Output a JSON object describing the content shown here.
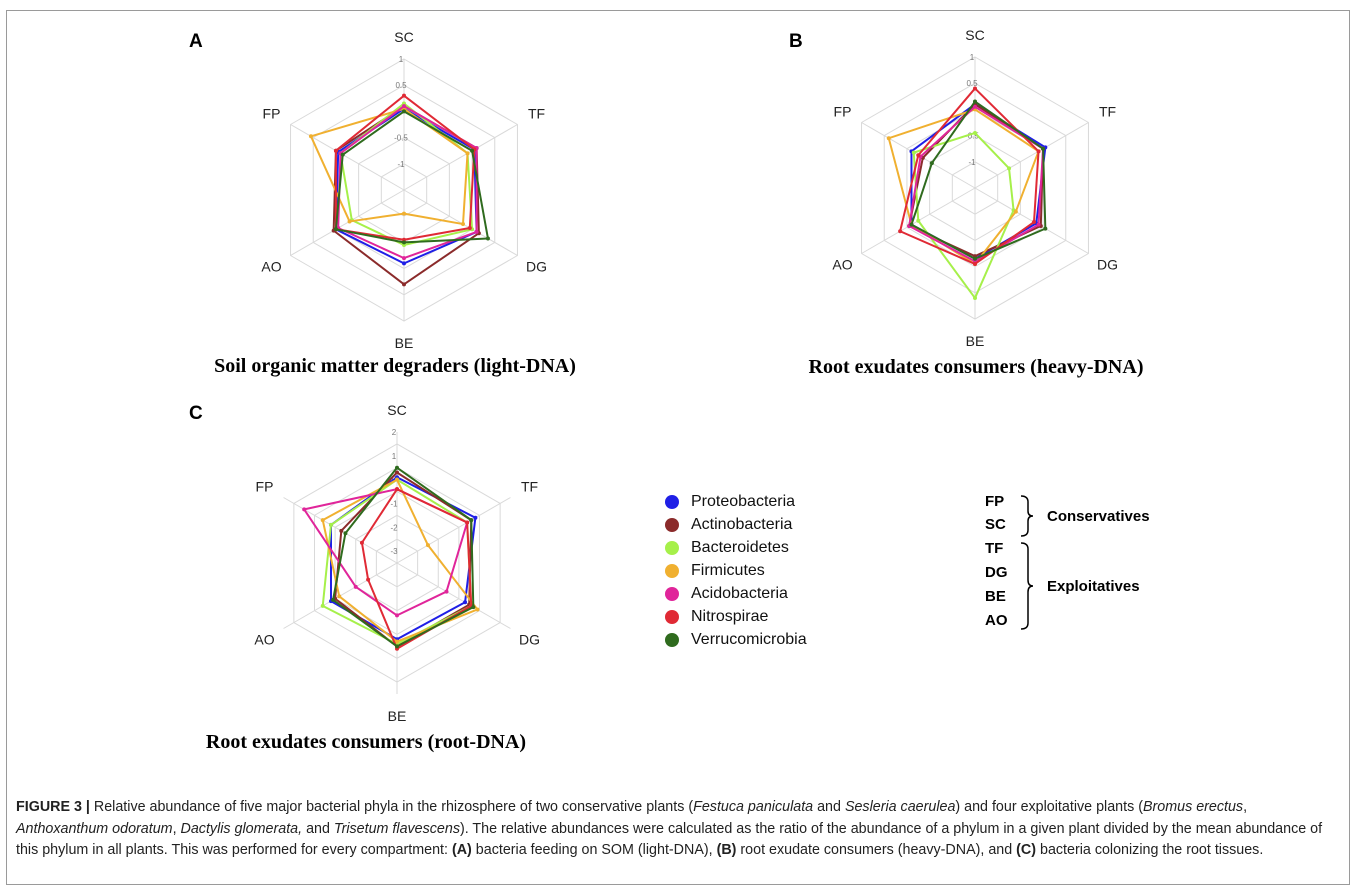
{
  "figure": {
    "caption": {
      "label": "FIGURE 3 |",
      "parts": [
        {
          "t": " Relative abundance of five major bacterial phyla in the rhizosphere of two conservative plants ("
        },
        {
          "t": "Festuca paniculata",
          "i": true
        },
        {
          "t": " and "
        },
        {
          "t": "Sesleria caerulea",
          "i": true
        },
        {
          "t": ") and four exploitative plants ("
        },
        {
          "t": "Bromus erectus",
          "i": true
        },
        {
          "t": ", "
        },
        {
          "t": "Anthoxanthum odoratum",
          "i": true
        },
        {
          "t": ", "
        },
        {
          "t": "Dactylis glomerata,",
          "i": true
        },
        {
          "t": " and "
        },
        {
          "t": "Trisetum flavescens",
          "i": true
        },
        {
          "t": "). The relative abundances were calculated as the ratio of the abundance of a phylum in a given plant divided by the mean abundance of this phylum in all plants. This was performed for every compartment: "
        },
        {
          "t": "(A)",
          "b": true
        },
        {
          "t": " bacteria feeding on SOM (light-DNA), "
        },
        {
          "t": "(B)",
          "b": true
        },
        {
          "t": " root exudate consumers (heavy-DNA), and "
        },
        {
          "t": "(C)",
          "b": true
        },
        {
          "t": " bacteria colonizing the root tissues."
        }
      ]
    },
    "legend": [
      {
        "name": "Proteobacteria",
        "color": "#1f1fe6"
      },
      {
        "name": "Actinobacteria",
        "color": "#8b2b2b"
      },
      {
        "name": "Bacteroidetes",
        "color": "#a6f04a"
      },
      {
        "name": "Firmicutes",
        "color": "#f0b030"
      },
      {
        "name": "Acidobacteria",
        "color": "#e0259a"
      },
      {
        "name": "Nitrospirae",
        "color": "#e02a35"
      },
      {
        "name": "Verrucomicrobia",
        "color": "#2f6b1e"
      }
    ],
    "plant_key": {
      "codes": [
        "FP",
        "SC",
        "TF",
        "DG",
        "BE",
        "AO"
      ],
      "conservatives_label": "Conservatives",
      "exploitatives_label": "Exploitatives"
    }
  },
  "chart_data": [
    {
      "type": "radar",
      "panel": "A",
      "title": "Soil organic matter degraders (light-DNA)",
      "axes": [
        "SC",
        "TF",
        "DG",
        "BE",
        "AO",
        "FP"
      ],
      "range": [
        -1.5,
        1
      ],
      "ticks": [
        1,
        0.5,
        -0.5,
        -1
      ],
      "series": [
        {
          "name": "Proteobacteria",
          "values": [
            0.05,
            0.05,
            0.1,
            -0.1,
            0.0,
            -0.05
          ]
        },
        {
          "name": "Actinobacteria",
          "values": [
            0.1,
            0.1,
            0.15,
            0.3,
            0.05,
            0.0
          ]
        },
        {
          "name": "Bacteroidetes",
          "values": [
            0.15,
            -0.1,
            0.0,
            -0.45,
            -0.35,
            -0.1
          ]
        },
        {
          "name": "Firmicutes",
          "values": [
            0.05,
            -0.1,
            -0.2,
            -1.05,
            -0.3,
            0.55
          ]
        },
        {
          "name": "Acidobacteria",
          "values": [
            0.1,
            0.1,
            0.1,
            -0.2,
            -0.05,
            -0.1
          ]
        },
        {
          "name": "Nitrospirae",
          "values": [
            0.3,
            0.05,
            -0.05,
            -0.55,
            0.0,
            0.0
          ]
        },
        {
          "name": "Verrucomicrobia",
          "values": [
            0.0,
            0.0,
            0.35,
            -0.5,
            0.0,
            -0.15
          ]
        }
      ]
    },
    {
      "type": "radar",
      "panel": "B",
      "title": "Root exudates consumers (heavy-DNA)",
      "axes": [
        "SC",
        "TF",
        "DG",
        "BE",
        "AO",
        "FP"
      ],
      "range": [
        -1.5,
        1
      ],
      "ticks": [
        1,
        0.5,
        -0.5,
        -1
      ],
      "series": [
        {
          "name": "Proteobacteria",
          "values": [
            0.1,
            0.05,
            -0.15,
            -0.15,
            -0.1,
            -0.1
          ]
        },
        {
          "name": "Actinobacteria",
          "values": [
            0.1,
            0.0,
            -0.05,
            -0.2,
            -0.05,
            -0.35
          ]
        },
        {
          "name": "Bacteroidetes",
          "values": [
            -0.45,
            -0.75,
            -0.65,
            0.6,
            -0.25,
            -0.15
          ]
        },
        {
          "name": "Firmicutes",
          "values": [
            0.0,
            -0.1,
            -0.6,
            -0.05,
            -0.1,
            0.4
          ]
        },
        {
          "name": "Acidobacteria",
          "values": [
            0.05,
            0.0,
            -0.1,
            -0.1,
            -0.05,
            -0.3
          ]
        },
        {
          "name": "Nitrospirae",
          "values": [
            0.4,
            -0.1,
            -0.2,
            -0.05,
            0.15,
            -0.25
          ]
        },
        {
          "name": "Verrucomicrobia",
          "values": [
            0.15,
            0.0,
            0.05,
            -0.15,
            -0.1,
            -0.55
          ]
        }
      ]
    },
    {
      "type": "radar",
      "panel": "C",
      "title": "Root exudates consumers (root-DNA)",
      "axes": [
        "SC",
        "TF",
        "DG",
        "BE",
        "AO",
        "FP"
      ],
      "range": [
        -3.5,
        2
      ],
      "ticks": [
        2,
        1,
        0,
        -1,
        -2,
        -3
      ],
      "series": [
        {
          "name": "Proteobacteria",
          "values": [
            0.1,
            0.3,
            -0.2,
            -0.3,
            -0.3,
            -0.3
          ]
        },
        {
          "name": "Actinobacteria",
          "values": [
            0.3,
            0.1,
            0.0,
            0.0,
            -0.5,
            -0.8
          ]
        },
        {
          "name": "Bacteroidetes",
          "values": [
            0.0,
            -0.1,
            0.1,
            -0.1,
            0.1,
            -0.3
          ]
        },
        {
          "name": "Firmicutes",
          "values": [
            0.0,
            -2.0,
            0.4,
            -0.2,
            -0.7,
            0.1
          ]
        },
        {
          "name": "Acidobacteria",
          "values": [
            -0.4,
            -0.1,
            -1.1,
            -1.3,
            -1.5,
            1.0
          ]
        },
        {
          "name": "Nitrospirae",
          "values": [
            -0.4,
            -0.1,
            0.1,
            0.1,
            -2.1,
            -1.8
          ]
        },
        {
          "name": "Verrucomicrobia",
          "values": [
            0.5,
            0.1,
            0.2,
            0.0,
            -0.4,
            -1.0
          ]
        }
      ]
    }
  ]
}
